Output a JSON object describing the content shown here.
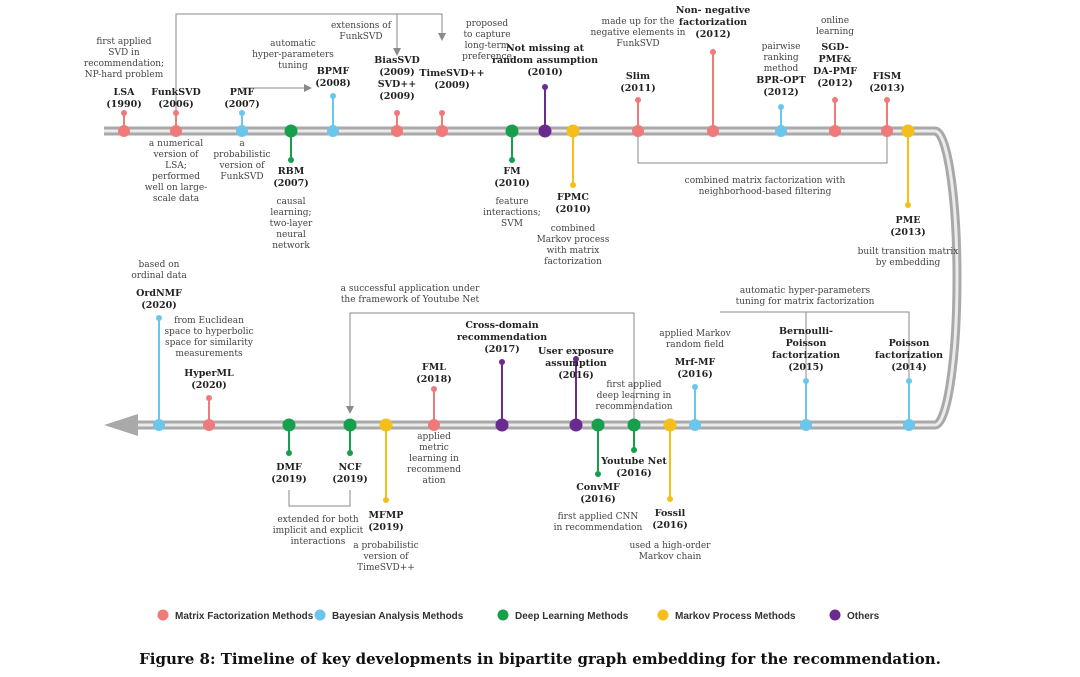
{
  "figure": {
    "caption": "Figure 8: Timeline of key developments in bipartite graph embedding for the recommendation."
  },
  "colors": {
    "mf": "#f07a7a",
    "bayes": "#6cc6ec",
    "dl": "#16a04c",
    "markov": "#f4be1c",
    "others": "#6a2a90",
    "track": "#a9a9a9",
    "track_inner": "#ebebeb",
    "connector": "#8a8a8a"
  },
  "legend": [
    {
      "label": "Matrix Factorization Methods",
      "cat": "mf"
    },
    {
      "label": "Bayesian Analysis Methods",
      "cat": "bayes"
    },
    {
      "label": "Deep Learning Methods",
      "cat": "dl"
    },
    {
      "label": "Markov Process Methods",
      "cat": "markov"
    },
    {
      "label": "Others",
      "cat": "others"
    }
  ],
  "methods": [
    {
      "id": "lsa",
      "cat": "mf",
      "lines": [
        "LSA",
        "(1990)"
      ],
      "desc": [
        "first applied",
        "SVD in",
        "recommendation;",
        "NP-hard problem"
      ]
    },
    {
      "id": "funksvd",
      "cat": "mf",
      "lines": [
        "FunkSVD",
        "(2006)"
      ],
      "desc": [
        "a numerical",
        "version of",
        "LSA;",
        "performed",
        "well on large-",
        "scale data"
      ]
    },
    {
      "id": "pmf",
      "cat": "bayes",
      "lines": [
        "PMF",
        "(2007)"
      ],
      "desc": [
        "a",
        "probabilistic",
        "version of",
        "FunkSVD"
      ]
    },
    {
      "id": "rbm",
      "cat": "dl",
      "lines": [
        "RBM",
        "(2007)"
      ],
      "desc": [
        "causal",
        "learning;",
        "two-layer",
        "neural",
        "network"
      ]
    },
    {
      "id": "bpmf",
      "cat": "bayes",
      "lines": [
        "BPMF",
        "(2008)"
      ],
      "desc": [
        "automatic",
        "hyper-parameters",
        "tuning"
      ]
    },
    {
      "id": "biassvd",
      "cat": "mf",
      "lines": [
        "BiasSVD",
        "(2009)",
        "SVD++",
        "(2009)"
      ],
      "desc": [
        "extensions of",
        "FunkSVD"
      ]
    },
    {
      "id": "timesvd",
      "cat": "mf",
      "lines": [
        "TimeSVD++",
        "(2009)"
      ],
      "desc": [
        "proposed",
        "to capture",
        "long-term",
        "preference"
      ]
    },
    {
      "id": "fm",
      "cat": "dl",
      "lines": [
        "FM",
        "(2010)"
      ],
      "desc": [
        "feature",
        "interactions;",
        "SVM"
      ]
    },
    {
      "id": "nmar",
      "cat": "others",
      "lines": [
        "Not missing at",
        "random assumption",
        "(2010)"
      ],
      "desc": []
    },
    {
      "id": "fpmc",
      "cat": "markov",
      "lines": [
        "FPMC",
        "(2010)"
      ],
      "desc": [
        "combined",
        "Markov process",
        "with matrix",
        "factorization"
      ]
    },
    {
      "id": "slim",
      "cat": "mf",
      "lines": [
        "Slim",
        "(2011)"
      ],
      "desc": [
        "made up for the",
        "negative elements in",
        "FunkSVD"
      ]
    },
    {
      "id": "nnf",
      "cat": "mf",
      "lines": [
        "Non- negative",
        "factorization",
        "(2012)"
      ],
      "desc": []
    },
    {
      "id": "bpropt",
      "cat": "bayes",
      "lines": [
        "BPR-OPT",
        "(2012)"
      ],
      "desc": [
        "pairwise",
        "ranking",
        "method"
      ]
    },
    {
      "id": "sgdpmf",
      "cat": "mf",
      "lines": [
        "SGD-",
        "PMF&",
        "DA-PMF",
        "(2012)"
      ],
      "desc": [
        "online",
        "learning"
      ]
    },
    {
      "id": "fism",
      "cat": "mf",
      "lines": [
        "FISM",
        "(2013)"
      ],
      "desc": []
    },
    {
      "id": "pme",
      "cat": "markov",
      "lines": [
        "PME",
        "(2013)"
      ],
      "desc": [
        "built transition matrix",
        "by embedding"
      ]
    },
    {
      "id": "poisson",
      "cat": "bayes",
      "lines": [
        "Poisson",
        "factorization",
        "(2014)"
      ],
      "desc": []
    },
    {
      "id": "bernoulli",
      "cat": "bayes",
      "lines": [
        "Bernoulli-",
        "Poisson",
        "factorization",
        "(2015)"
      ],
      "desc": []
    },
    {
      "id": "mrfmf",
      "cat": "bayes",
      "lines": [
        "Mrf-MF",
        "(2016)"
      ],
      "desc": [
        "applied Markov",
        "random field"
      ]
    },
    {
      "id": "fossil",
      "cat": "markov",
      "lines": [
        "Fossil",
        "(2016)"
      ],
      "desc": [
        "used a high-order",
        "Markov chain"
      ]
    },
    {
      "id": "youtube",
      "cat": "dl",
      "lines": [
        "Youtube Net",
        "(2016)"
      ],
      "desc": [
        "first applied",
        "deep learning in",
        "recommendation"
      ]
    },
    {
      "id": "convmf",
      "cat": "dl",
      "lines": [
        "ConvMF",
        "(2016)"
      ],
      "desc": [
        "first applied CNN",
        "in recommendation"
      ]
    },
    {
      "id": "userexp",
      "cat": "others",
      "lines": [
        "User exposure",
        "assumption",
        "(2016)"
      ],
      "desc": []
    },
    {
      "id": "crossdomain",
      "cat": "others",
      "lines": [
        "Cross-domain",
        "recommendation",
        "(2017)"
      ],
      "desc": []
    },
    {
      "id": "fml",
      "cat": "mf",
      "lines": [
        "FML",
        "(2018)"
      ],
      "desc": [
        "applied",
        "metric",
        "learning in",
        "recommend",
        "ation"
      ]
    },
    {
      "id": "mfmp",
      "cat": "markov",
      "lines": [
        "MFMP",
        "(2019)"
      ],
      "desc": [
        "a probabilistic",
        "version of",
        "TimeSVD++"
      ]
    },
    {
      "id": "ncf",
      "cat": "dl",
      "lines": [
        "NCF",
        "(2019)"
      ],
      "desc": []
    },
    {
      "id": "dmf",
      "cat": "dl",
      "lines": [
        "DMF",
        "(2019)"
      ],
      "desc": []
    },
    {
      "id": "hyperml",
      "cat": "mf",
      "lines": [
        "HyperML",
        "(2020)"
      ],
      "desc": [
        "from Euclidean",
        "space to hyperbolic",
        "space for similarity",
        "measurements"
      ]
    },
    {
      "id": "ordnmf",
      "cat": "bayes",
      "lines": [
        "OrdNMF",
        "(2020)"
      ],
      "desc": [
        "based on",
        "ordinal data"
      ]
    }
  ],
  "connectors": [
    {
      "id": "slim_fism",
      "lines": [
        "combined matrix factorization with",
        "neighborhood-based filtering"
      ]
    },
    {
      "id": "bernoulli_poisson",
      "lines": [
        "automatic hyper-parameters",
        "tuning for matrix factorization"
      ]
    },
    {
      "id": "youtube_ncf",
      "lines": [
        "a successful application under",
        "the framework of Youtube Net"
      ]
    },
    {
      "id": "dmf_ncf",
      "lines": [
        "extended for both",
        "implicit and explicit",
        "interactions"
      ]
    }
  ]
}
